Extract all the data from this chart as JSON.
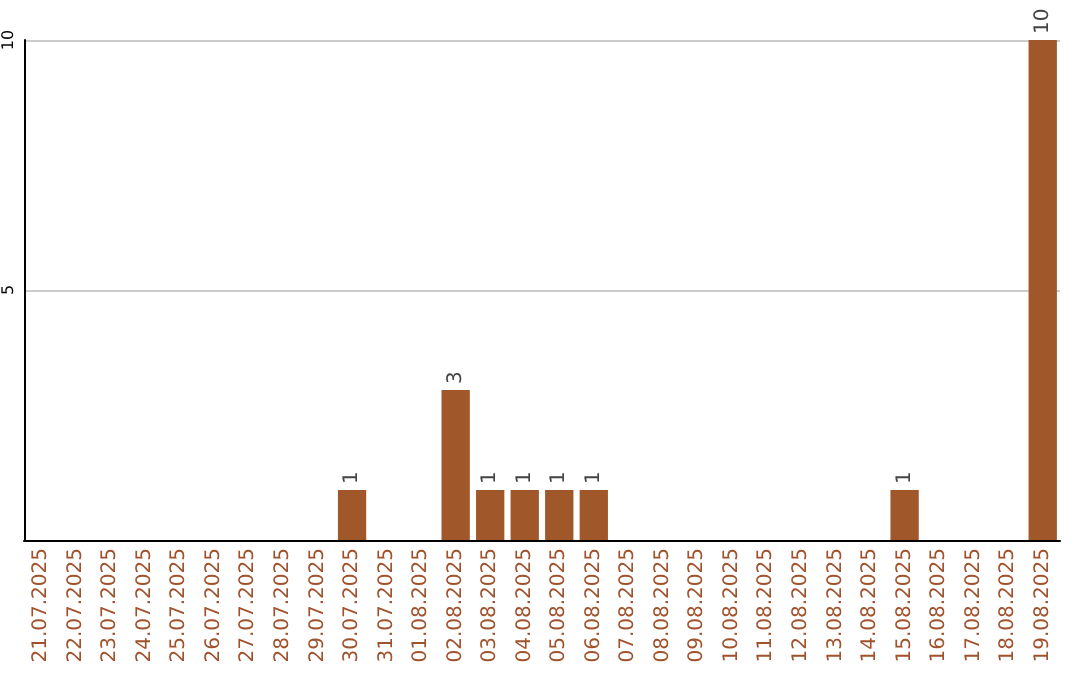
{
  "chart_data": {
    "type": "bar",
    "categories": [
      "21.07.2025",
      "22.07.2025",
      "23.07.2025",
      "24.07.2025",
      "25.07.2025",
      "26.07.2025",
      "27.07.2025",
      "28.07.2025",
      "29.07.2025",
      "30.07.2025",
      "31.07.2025",
      "01.08.2025",
      "02.08.2025",
      "03.08.2025",
      "04.08.2025",
      "05.08.2025",
      "06.08.2025",
      "07.08.2025",
      "08.08.2025",
      "09.08.2025",
      "10.08.2025",
      "11.08.2025",
      "12.08.2025",
      "13.08.2025",
      "14.08.2025",
      "15.08.2025",
      "16.08.2025",
      "17.08.2025",
      "18.08.2025",
      "19.08.2025"
    ],
    "values": [
      0,
      0,
      0,
      0,
      0,
      0,
      0,
      0,
      0,
      1,
      0,
      0,
      3,
      1,
      1,
      1,
      1,
      0,
      0,
      0,
      0,
      0,
      0,
      0,
      0,
      1,
      0,
      0,
      0,
      10
    ],
    "value_labels": [
      null,
      null,
      null,
      null,
      null,
      null,
      null,
      null,
      null,
      "1",
      null,
      null,
      "3",
      "1",
      "1",
      "1",
      "1",
      null,
      null,
      null,
      null,
      null,
      null,
      null,
      null,
      "1",
      null,
      null,
      null,
      "10"
    ],
    "color": "#a0582a",
    "ylim": [
      0,
      10
    ],
    "yticks": [
      {
        "value": 0,
        "label": null
      },
      5,
      10
    ],
    "grid": "y"
  }
}
